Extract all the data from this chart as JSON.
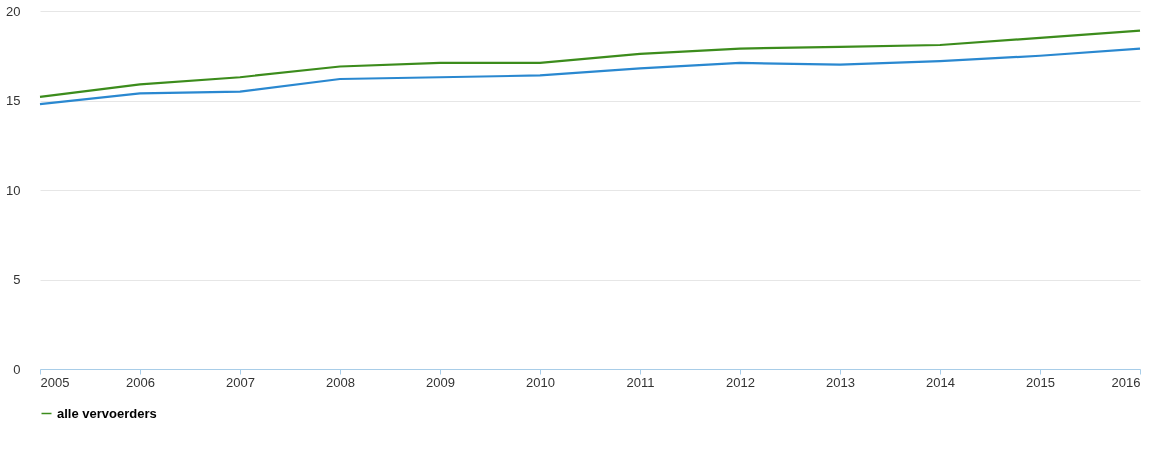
{
  "chart_data": {
    "type": "line",
    "x": [
      2005,
      2006,
      2007,
      2008,
      2009,
      2010,
      2011,
      2012,
      2013,
      2014,
      2015,
      2016
    ],
    "series": [
      {
        "color": "#2a88d0",
        "values": [
          14.8,
          15.4,
          15.5,
          16.2,
          16.3,
          16.4,
          16.8,
          17.1,
          17.0,
          17.2,
          17.5,
          17.9
        ]
      },
      {
        "name": "alle vervoerders",
        "color": "#3c8c1c",
        "values": [
          15.2,
          15.9,
          16.3,
          16.9,
          17.1,
          17.1,
          17.6,
          17.9,
          18.0,
          18.1,
          18.5,
          18.9
        ]
      }
    ],
    "xlim": [
      2005,
      2016
    ],
    "xticks": [
      2005,
      2006,
      2007,
      2008,
      2009,
      2010,
      2011,
      2012,
      2013,
      2014,
      2015,
      2016
    ],
    "ylim": [
      0,
      20
    ],
    "yticks": [
      0,
      5,
      10,
      15,
      20
    ],
    "grid": "y",
    "legend": "bottom",
    "marker": "none",
    "line_style": "solid"
  }
}
